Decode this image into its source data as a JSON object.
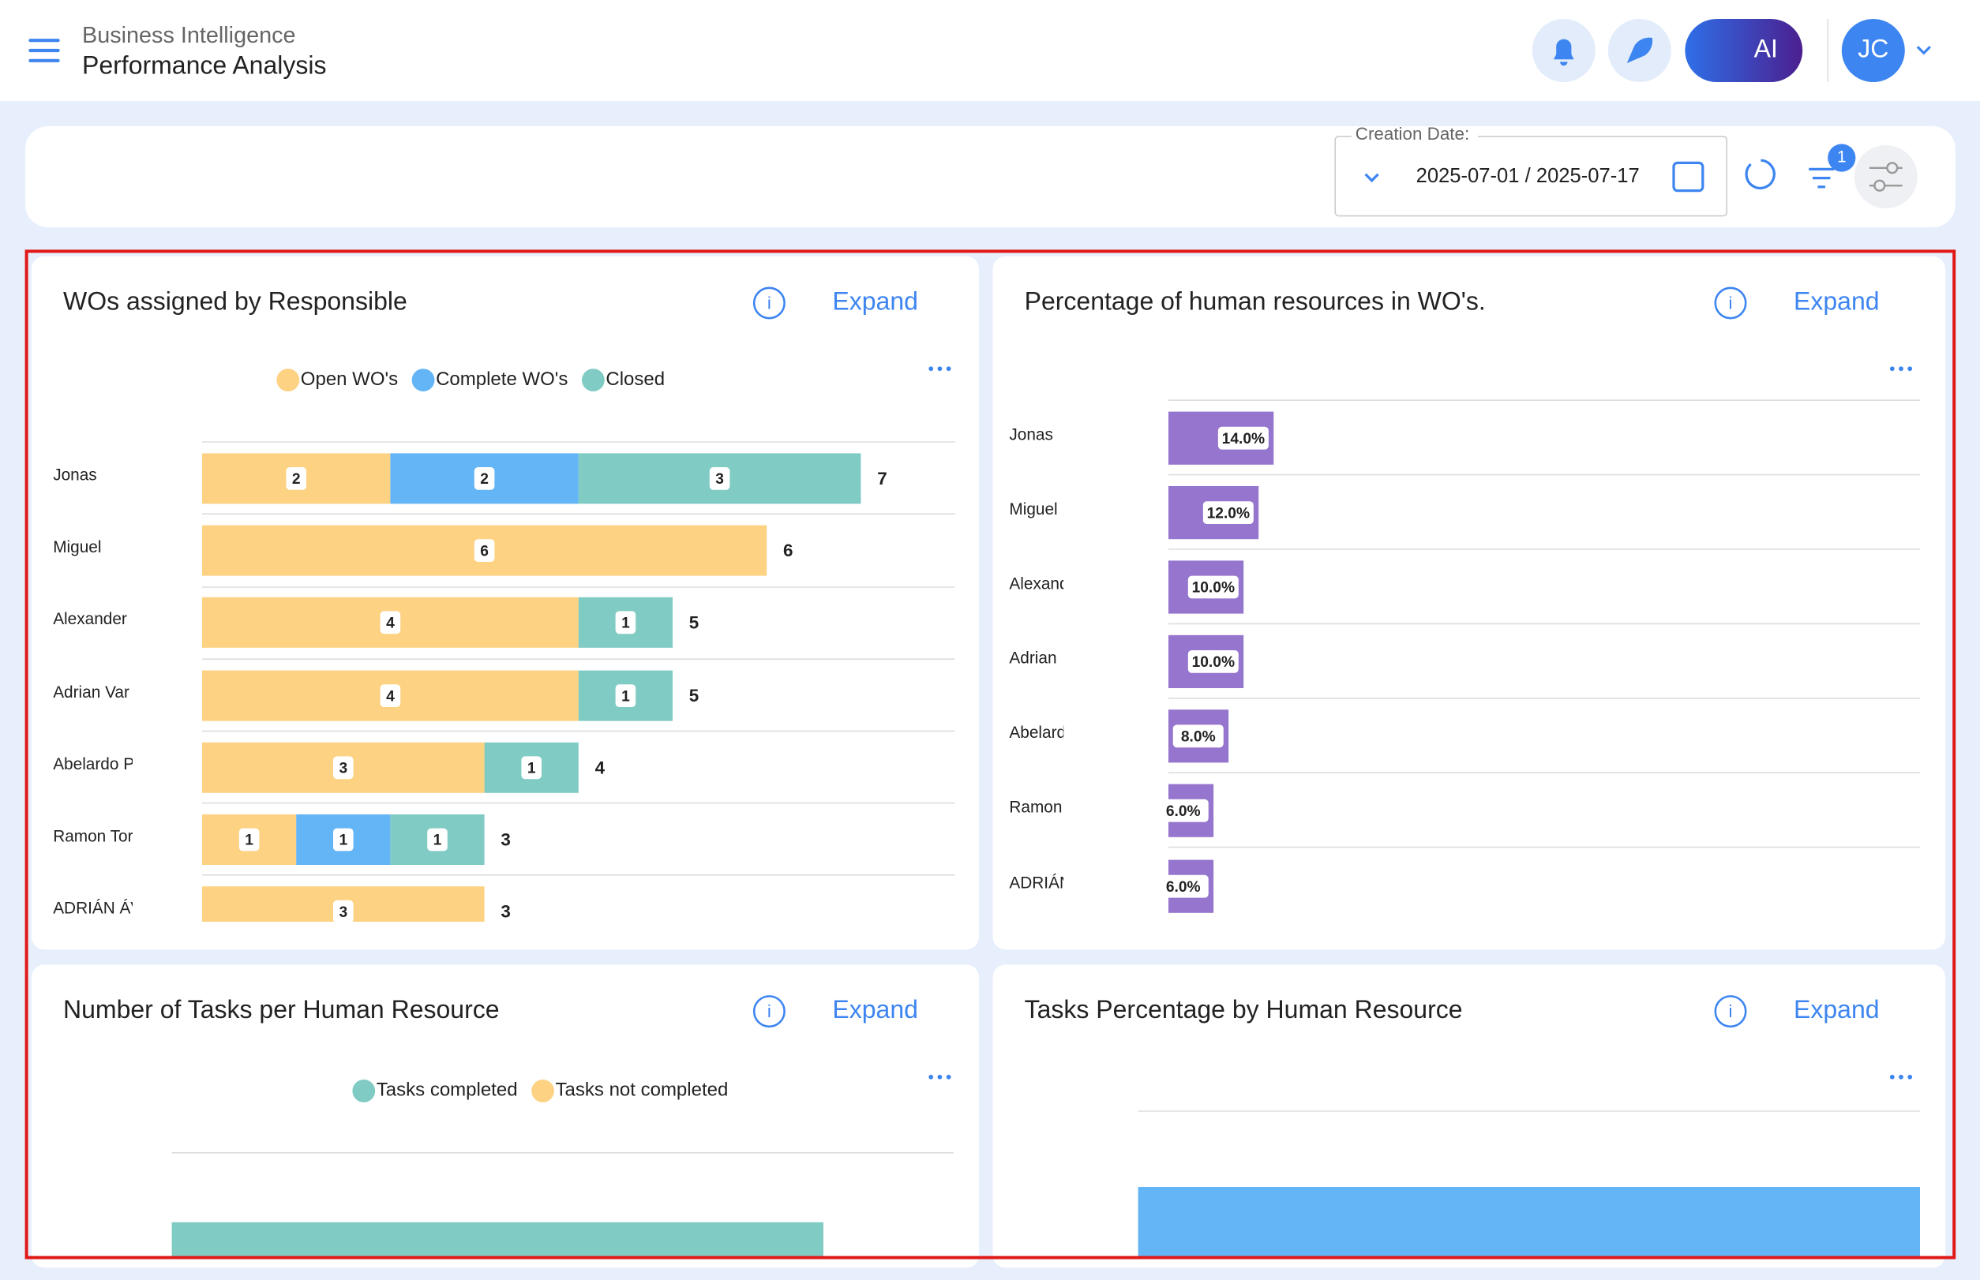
{
  "header": {
    "subtitle": "Business Intelligence",
    "title": "Performance Analysis",
    "ai": "AI",
    "avatar": "JC"
  },
  "filters": {
    "label": "Creation Date:",
    "value": "2025-07-01 / 2025-07-17",
    "badge": 1
  },
  "panels": [
    {
      "title": "WOs assigned by Responsible",
      "expand": "Expand",
      "chart": {
        "type": "stacked_bar_h",
        "categories": [
          "Jonas",
          "Miguel",
          "Alexander",
          "Adrian Var",
          "Abelardo P",
          "Ramon Tor",
          "ADRIÁN ÁV"
        ],
        "series": [
          {
            "name": "Open WO's",
            "color": "#fdd283",
            "values": [
              2,
              6,
              4,
              4,
              3,
              1,
              3
            ]
          },
          {
            "name": "Complete WO's",
            "color": "#64b5f6",
            "values": [
              2,
              0,
              0,
              0,
              0,
              1,
              0
            ]
          },
          {
            "name": "Closed",
            "color": "#80cbc4",
            "values": [
              3,
              0,
              1,
              1,
              1,
              1,
              0
            ]
          }
        ],
        "totals": [
          7,
          6,
          5,
          5,
          4,
          3,
          3
        ],
        "xlim": [
          0,
          8
        ]
      }
    },
    {
      "title": "Percentage of human resources in WO's.",
      "expand": "Expand",
      "chart": {
        "type": "bar_h",
        "categories": [
          "Jonas",
          "Miguel",
          "Alexand",
          "Adrian",
          "Abelard",
          "Ramon",
          "ADRIÁN"
        ],
        "values": [
          14,
          12,
          10,
          10,
          8,
          6,
          6
        ],
        "value_labels": [
          "14.0%",
          "12.0%",
          "10.0%",
          "10.0%",
          "8.0%",
          "6.0%",
          "6.0%"
        ],
        "color": "#9575cd",
        "xlim": [
          0,
          100
        ]
      }
    },
    {
      "title": "Number of Tasks per Human Resource",
      "expand": "Expand",
      "chart": {
        "type": "stacked_bar_h",
        "categories": [
          null
        ],
        "series": [
          {
            "name": "Tasks completed",
            "color": "#80cbc4",
            "values": [
              10
            ]
          },
          {
            "name": "Tasks not completed",
            "color": "#fdd283",
            "values": [
              0
            ]
          }
        ],
        "xlim": [
          0,
          12
        ]
      }
    },
    {
      "title": "Tasks Percentage by Human Resource",
      "expand": "Expand",
      "chart": {
        "type": "bar_h",
        "categories": [
          null
        ],
        "values": [
          100
        ],
        "color": "#64b5f6",
        "xlim": [
          0,
          100
        ]
      }
    }
  ]
}
